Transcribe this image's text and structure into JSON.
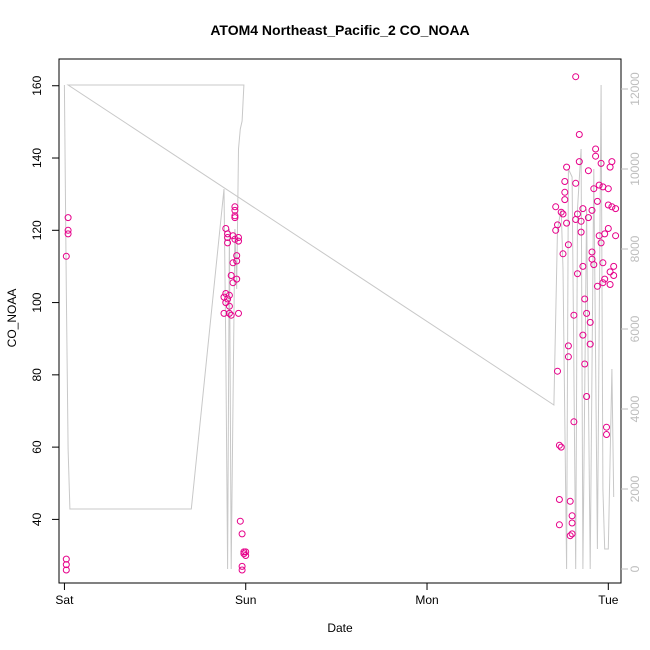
{
  "chart_data": {
    "type": "scatter",
    "title": "ATOM4 Northeast_Pacific_2 CO_NOAA",
    "xlabel": "Date",
    "ylabel": "CO_NOAA",
    "x_ticks": [
      "Sat",
      "Sun",
      "Mon",
      "Tue"
    ],
    "y_ticks": [
      40,
      60,
      80,
      100,
      120,
      140,
      160
    ],
    "y2_ticks": [
      0,
      2000,
      4000,
      6000,
      8000,
      10000,
      12000
    ],
    "xlim": [
      -0.03,
      3.07
    ],
    "ylim": [
      22.4,
      167.4
    ],
    "y2lim": [
      -350,
      12750
    ],
    "colors": {
      "points": "#e6008a",
      "altitude_line": "#c8c8c8",
      "axis": "#000000",
      "right_axis": "#bdbdbd"
    },
    "series": [
      {
        "type": "scatter",
        "values": [
          [
            0.01,
            112.8
          ],
          [
            0.02,
            120
          ],
          [
            0.02,
            119
          ],
          [
            0.02,
            123.5
          ],
          [
            0.01,
            29
          ],
          [
            0.01,
            27.5
          ],
          [
            0.01,
            26
          ],
          [
            0.88,
            97
          ],
          [
            0.88,
            101.5
          ],
          [
            0.89,
            102.5
          ],
          [
            0.89,
            100
          ],
          [
            0.89,
            120.5
          ],
          [
            0.9,
            118
          ],
          [
            0.9,
            116.5
          ],
          [
            0.9,
            119
          ],
          [
            0.9,
            101
          ],
          [
            0.91,
            97
          ],
          [
            0.91,
            99
          ],
          [
            0.91,
            102
          ],
          [
            0.92,
            107.5
          ],
          [
            0.92,
            96.5
          ],
          [
            0.93,
            105.5
          ],
          [
            0.93,
            111
          ],
          [
            0.93,
            118.5
          ],
          [
            0.94,
            117.5
          ],
          [
            0.94,
            124
          ],
          [
            0.94,
            123.5
          ],
          [
            0.94,
            125.5
          ],
          [
            0.94,
            126.5
          ],
          [
            0.95,
            111.5
          ],
          [
            0.95,
            113
          ],
          [
            0.95,
            106.5
          ],
          [
            0.96,
            97
          ],
          [
            0.96,
            118
          ],
          [
            0.96,
            117
          ],
          [
            0.97,
            39.5
          ],
          [
            0.98,
            36
          ],
          [
            0.98,
            27
          ],
          [
            0.98,
            26
          ],
          [
            0.99,
            31
          ],
          [
            0.99,
            30.5
          ],
          [
            1.0,
            30
          ],
          [
            1.0,
            31
          ],
          [
            2.71,
            126.5
          ],
          [
            2.71,
            120
          ],
          [
            2.72,
            121.5
          ],
          [
            2.72,
            81
          ],
          [
            2.73,
            45.5
          ],
          [
            2.73,
            38.5
          ],
          [
            2.73,
            60.5
          ],
          [
            2.74,
            60
          ],
          [
            2.74,
            125
          ],
          [
            2.75,
            124.5
          ],
          [
            2.75,
            113.5
          ],
          [
            2.76,
            133.5
          ],
          [
            2.76,
            130.5
          ],
          [
            2.76,
            128.5
          ],
          [
            2.77,
            122
          ],
          [
            2.77,
            137.5
          ],
          [
            2.78,
            116
          ],
          [
            2.78,
            85
          ],
          [
            2.78,
            88
          ],
          [
            2.79,
            35.5
          ],
          [
            2.79,
            45
          ],
          [
            2.8,
            41
          ],
          [
            2.8,
            39
          ],
          [
            2.8,
            36
          ],
          [
            2.81,
            67
          ],
          [
            2.81,
            96.5
          ],
          [
            2.82,
            162.5
          ],
          [
            2.82,
            133
          ],
          [
            2.82,
            123
          ],
          [
            2.83,
            124.5
          ],
          [
            2.83,
            108
          ],
          [
            2.84,
            146.5
          ],
          [
            2.84,
            139
          ],
          [
            2.85,
            119.5
          ],
          [
            2.85,
            122.5
          ],
          [
            2.86,
            110
          ],
          [
            2.86,
            126
          ],
          [
            2.86,
            91
          ],
          [
            2.87,
            101
          ],
          [
            2.87,
            83
          ],
          [
            2.88,
            74
          ],
          [
            2.88,
            97
          ],
          [
            2.89,
            136.5
          ],
          [
            2.89,
            123.5
          ],
          [
            2.9,
            88.5
          ],
          [
            2.9,
            94.5
          ],
          [
            2.91,
            114
          ],
          [
            2.91,
            112
          ],
          [
            2.91,
            125.5
          ],
          [
            2.92,
            110.5
          ],
          [
            2.92,
            131.5
          ],
          [
            2.93,
            140.5
          ],
          [
            2.93,
            142.5
          ],
          [
            2.94,
            104.5
          ],
          [
            2.94,
            128
          ],
          [
            2.95,
            118.5
          ],
          [
            2.95,
            132.5
          ],
          [
            2.96,
            116.5
          ],
          [
            2.96,
            138.5
          ],
          [
            2.97,
            105.5
          ],
          [
            2.97,
            111
          ],
          [
            2.97,
            132
          ],
          [
            2.98,
            119
          ],
          [
            2.98,
            106.5
          ],
          [
            2.99,
            65.5
          ],
          [
            2.99,
            63.5
          ],
          [
            3.0,
            131.5
          ],
          [
            3.0,
            127
          ],
          [
            3.0,
            120.5
          ],
          [
            3.01,
            108.5
          ],
          [
            3.01,
            105
          ],
          [
            3.01,
            137.5
          ],
          [
            3.02,
            139
          ],
          [
            3.02,
            126.5
          ],
          [
            3.03,
            110
          ],
          [
            3.03,
            107.5
          ],
          [
            3.04,
            118.5
          ],
          [
            3.04,
            126
          ]
        ]
      },
      {
        "type": "line",
        "axis": "right",
        "values": [
          [
            0.0,
            12100
          ],
          [
            0.01,
            7000
          ],
          [
            0.02,
            3000
          ],
          [
            0.03,
            1500
          ],
          [
            0.3,
            1500
          ],
          [
            0.7,
            1500
          ],
          [
            0.88,
            9500
          ],
          [
            0.89,
            5500
          ],
          [
            0.9,
            0
          ],
          [
            0.91,
            8500
          ],
          [
            0.92,
            0
          ],
          [
            0.94,
            8500
          ],
          [
            0.95,
            7000
          ],
          [
            0.96,
            10500
          ],
          [
            0.97,
            11000
          ],
          [
            0.98,
            11200
          ],
          [
            0.99,
            12100
          ],
          [
            0.99,
            12100
          ],
          [
            0.02,
            12100
          ],
          [
            2.7,
            4100
          ],
          [
            2.72,
            8500
          ],
          [
            2.74,
            9000
          ],
          [
            2.75,
            7500
          ],
          [
            2.77,
            0
          ],
          [
            2.78,
            10000
          ],
          [
            2.8,
            9800
          ],
          [
            2.82,
            0
          ],
          [
            2.83,
            9000
          ],
          [
            2.85,
            10500
          ],
          [
            2.86,
            0
          ],
          [
            2.88,
            9000
          ],
          [
            2.9,
            0
          ],
          [
            2.92,
            10000
          ],
          [
            2.94,
            500
          ],
          [
            2.96,
            12100
          ],
          [
            2.97,
            2000
          ],
          [
            2.98,
            500
          ],
          [
            3.0,
            500
          ],
          [
            3.02,
            5000
          ],
          [
            3.03,
            1800
          ]
        ]
      }
    ]
  }
}
